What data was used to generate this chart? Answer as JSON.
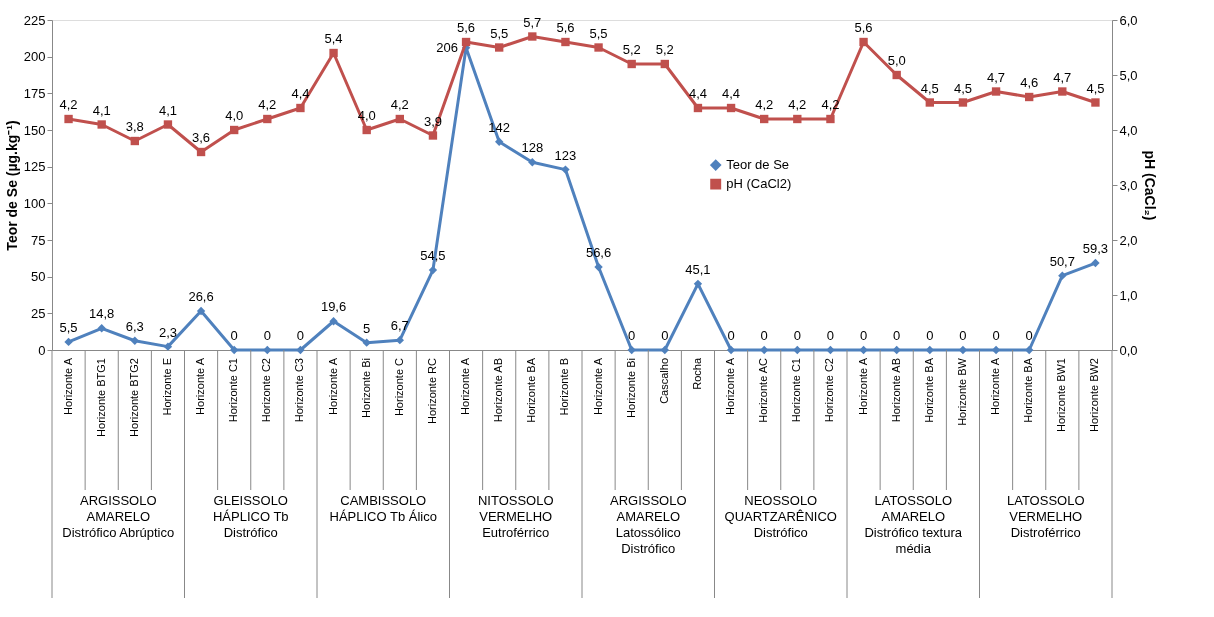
{
  "chart_data": {
    "type": "line",
    "ylabel": "Teor de Se (µg.kg⁻¹)",
    "y2label": "pH (CaCl₂)",
    "categories": [
      "Horizonte A",
      "Horizonte BTG1",
      "Horizonte BTG2",
      "Horizonte E",
      "Horizonte A",
      "Horizonte C1",
      "Horizonte C2",
      "Horizonte C3",
      "Horizonte A",
      "Horizonte Bi",
      "Horizonte C",
      "Horizonte RC",
      "Horizonte A",
      "Horizonte AB",
      "Horizonte BA",
      "Horizonte B",
      "Horizonte A",
      "Horizonte Bi",
      "Cascalho",
      "Rocha",
      "Horizonte A",
      "Horizonte AC",
      "Horizonte C1",
      "Horizonte C2",
      "Horizonte A",
      "Horizonte AB",
      "Horizonte BA",
      "Horizonte BW",
      "Horizonte A",
      "Horizonte BA",
      "Horizonte BW1",
      "Horizonte BW2"
    ],
    "series": [
      {
        "name": "Teor de Se",
        "color": "#4f81bd",
        "marker": "diamond",
        "axis": "y",
        "values": [
          5.5,
          14.8,
          6.3,
          2.3,
          26.6,
          0,
          0,
          0,
          19.6,
          5,
          6.7,
          54.5,
          206,
          142,
          128,
          123,
          56.6,
          0,
          0,
          45.1,
          0,
          0,
          0,
          0,
          0,
          0,
          0,
          0,
          0,
          0,
          50.7,
          59.3
        ],
        "value_labels": [
          "5,5",
          "14,8",
          "6,3",
          "2,3",
          "26,6",
          "0",
          "0",
          "0",
          "19,6",
          "5",
          "6,7",
          "54,5",
          "206",
          "142",
          "128",
          "123",
          "56,6",
          "0",
          "0",
          "45,1",
          "0",
          "0",
          "0",
          "0",
          "0",
          "0",
          "0",
          "0",
          "0",
          "0",
          "50,7",
          "59,3"
        ]
      },
      {
        "name": "pH (CaCl2)",
        "color": "#c0504d",
        "marker": "square",
        "axis": "y2",
        "values": [
          4.2,
          4.1,
          3.8,
          4.1,
          3.6,
          4.0,
          4.2,
          4.4,
          5.4,
          4.0,
          4.2,
          3.9,
          5.6,
          5.5,
          5.7,
          5.6,
          5.5,
          5.2,
          5.2,
          4.4,
          4.4,
          4.2,
          4.2,
          4.2,
          5.6,
          5.0,
          4.5,
          4.5,
          4.7,
          4.6,
          4.7,
          4.5
        ],
        "value_labels": [
          "4,2",
          "4,1",
          "3,8",
          "4,1",
          "3,6",
          "4,0",
          "4,2",
          "4,4",
          "5,4",
          "4,0",
          "4,2",
          "3,9",
          "5,6",
          "5,5",
          "5,7",
          "5,6",
          "5,5",
          "5,2",
          "5,2",
          "4,4",
          "4,4",
          "4,2",
          "4,2",
          "4,2",
          "5,6",
          "5,0",
          "4,5",
          "4,5",
          "4,7",
          "4,6",
          "4,7",
          "4,5"
        ]
      }
    ],
    "ylim": [
      0,
      225
    ],
    "yticks": [
      0,
      25,
      50,
      75,
      100,
      125,
      150,
      175,
      200,
      225
    ],
    "y2lim": [
      0,
      6
    ],
    "y2ticks": [
      {
        "value": 0,
        "label": "0,0"
      },
      {
        "value": 1,
        "label": "1,0"
      },
      {
        "value": 2,
        "label": "2,0"
      },
      {
        "value": 3,
        "label": "3,0"
      },
      {
        "value": 4,
        "label": "4,0"
      },
      {
        "value": 5,
        "label": "5,0"
      },
      {
        "value": 6,
        "label": "6,0"
      }
    ],
    "annotations": [
      "ARGISSOLO\nAMARELO\nDistrófico Abrúptico",
      "GLEISSOLO\nHÁPLICO Tb\nDistrófico",
      "CAMBISSOLO\nHÁPLICO Tb Álico",
      "NITOSSOLO\nVERMELHO\nEutroférrico",
      "ARGISSOLO\nAMARELO\nLatossólico\nDistrófico",
      "NEOSSOLO\nQUARTZARÊNICO\nDistrófico",
      "LATOSSOLO\nAMARELO\nDistrófico textura\nmédia",
      "LATOSSOLO\nVERMELHO\nDistroférrico"
    ],
    "legend": "right",
    "grid": false,
    "line_style": "solid"
  }
}
